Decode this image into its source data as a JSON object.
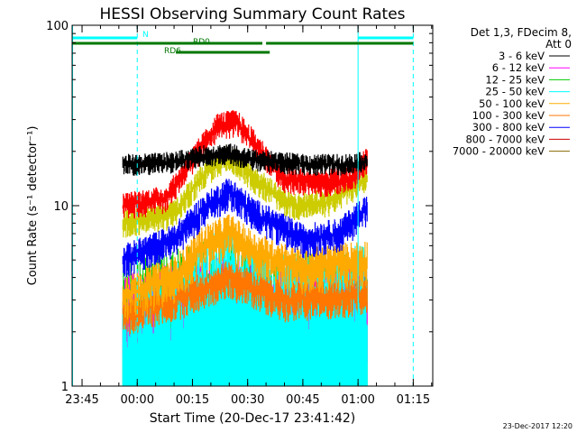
{
  "chart_data": {
    "type": "line",
    "title": "HESSI Observing Summary Count Rates",
    "xlabel": "Start Time (20-Dec-17 23:41:42)",
    "ylabel": "Count Rate (s⁻¹ detector⁻¹)",
    "yscale": "log",
    "ylim": [
      1,
      100
    ],
    "xlim_min": [
      -17.7,
      80.3
    ],
    "x_units": "minutes since 00:00",
    "x_ticks": [
      {
        "value": -15,
        "label": "23:45"
      },
      {
        "value": 0,
        "label": "00:00"
      },
      {
        "value": 15,
        "label": "00:15"
      },
      {
        "value": 30,
        "label": "00:30"
      },
      {
        "value": 45,
        "label": "00:45"
      },
      {
        "value": 60,
        "label": "01:00"
      },
      {
        "value": 75,
        "label": "01:15"
      }
    ],
    "y_ticks": [
      {
        "value": 1,
        "label": "1"
      },
      {
        "value": 10,
        "label": "10"
      },
      {
        "value": 100,
        "label": "100"
      }
    ],
    "legend_title": [
      "Det 1,3, FDecim 8,",
      "Att 0"
    ],
    "legend_position": "right",
    "series": [
      {
        "name": "3 - 6 keV",
        "color": "#000000",
        "profile": [
          [
            -4,
            17
          ],
          [
            0,
            17
          ],
          [
            10,
            17.5
          ],
          [
            18,
            19
          ],
          [
            25,
            19.5
          ],
          [
            32,
            18
          ],
          [
            45,
            17
          ],
          [
            55,
            17
          ],
          [
            62,
            17.5
          ]
        ]
      },
      {
        "name": "6 - 12 keV",
        "color": "#ff00ff",
        "profile": [
          [
            -4,
            1.8
          ],
          [
            10,
            1.9
          ],
          [
            25,
            2.2
          ],
          [
            40,
            1.9
          ],
          [
            62,
            2.0
          ]
        ]
      },
      {
        "name": "12 - 25 keV",
        "color": "#00cc00",
        "profile": [
          [
            -4,
            1.3
          ],
          [
            10,
            1.5
          ],
          [
            25,
            1.8
          ],
          [
            40,
            1.4
          ],
          [
            62,
            1.5
          ]
        ]
      },
      {
        "name": "25 - 50 keV",
        "color": "#00ffff",
        "profile": [
          [
            -4,
            1.2
          ],
          [
            10,
            1.8
          ],
          [
            18,
            2.6
          ],
          [
            25,
            3.0
          ],
          [
            32,
            2.3
          ],
          [
            45,
            2.0
          ],
          [
            62,
            2.4
          ]
        ]
      },
      {
        "name": "50 - 100 keV",
        "color": "#ffaa00",
        "profile": [
          [
            -4,
            3.2
          ],
          [
            10,
            4.0
          ],
          [
            18,
            6.0
          ],
          [
            25,
            7.0
          ],
          [
            32,
            5.5
          ],
          [
            45,
            4.5
          ],
          [
            62,
            5.0
          ]
        ]
      },
      {
        "name": "100 - 300 keV",
        "color": "#ff7700",
        "profile": [
          [
            -4,
            2.5
          ],
          [
            10,
            3.0
          ],
          [
            25,
            4.0
          ],
          [
            40,
            3.0
          ],
          [
            62,
            3.2
          ]
        ]
      },
      {
        "name": "300 - 800 keV",
        "color": "#0000ff",
        "profile": [
          [
            -4,
            5.0
          ],
          [
            10,
            6.5
          ],
          [
            18,
            9.5
          ],
          [
            25,
            12
          ],
          [
            32,
            9
          ],
          [
            45,
            6.5
          ],
          [
            55,
            7.0
          ],
          [
            62,
            9.5
          ]
        ]
      },
      {
        "name": "800 - 7000 keV",
        "color": "#cc0000",
        "profile": [
          [
            -4,
            7.5
          ],
          [
            8,
            8.5
          ],
          [
            15,
            10
          ],
          [
            20,
            13
          ],
          [
            25,
            14
          ],
          [
            32,
            10.5
          ],
          [
            42,
            9
          ],
          [
            52,
            9.5
          ],
          [
            62,
            12
          ]
        ]
      },
      {
        "name": "7000 - 20000 keV",
        "color": "#886600",
        "profile": [
          [
            -4,
            1.2
          ],
          [
            30,
            1.3
          ],
          [
            62,
            1.2
          ]
        ]
      }
    ],
    "series_red_bright": {
      "color": "#ff0000",
      "profile": [
        [
          -4,
          10
        ],
        [
          8,
          11
        ],
        [
          15,
          18
        ],
        [
          22,
          28
        ],
        [
          27,
          29
        ],
        [
          32,
          22
        ],
        [
          40,
          14
        ],
        [
          50,
          13.5
        ],
        [
          58,
          14
        ],
        [
          62,
          18
        ]
      ]
    },
    "series_yellow": {
      "color": "#cccc00",
      "profile": [
        [
          -4,
          8
        ],
        [
          10,
          9
        ],
        [
          18,
          15
        ],
        [
          25,
          19
        ],
        [
          32,
          14
        ],
        [
          42,
          10
        ],
        [
          52,
          10.5
        ],
        [
          62,
          14
        ]
      ]
    },
    "flag_bars": [
      {
        "label": "N",
        "color": "#00ffff",
        "segments": [
          [
            -17.7,
            0
          ],
          [
            60,
            75
          ]
        ]
      },
      {
        "label": "RD0",
        "color": "#007700",
        "segments": [
          [
            -17.7,
            34
          ],
          [
            35,
            60
          ],
          [
            60,
            75
          ]
        ]
      },
      {
        "label": "RD6",
        "color": "#007700",
        "segments": [
          [
            10.5,
            36
          ]
        ]
      }
    ],
    "vertical_markers": [
      {
        "x": 0,
        "color": "#00ffff",
        "style": "dashed"
      },
      {
        "x": 60,
        "color": "#00ffff",
        "style": "solid"
      },
      {
        "x": 75,
        "color": "#00ffff",
        "style": "dashed"
      }
    ],
    "timestamp": "23-Dec-2017 12:20"
  }
}
